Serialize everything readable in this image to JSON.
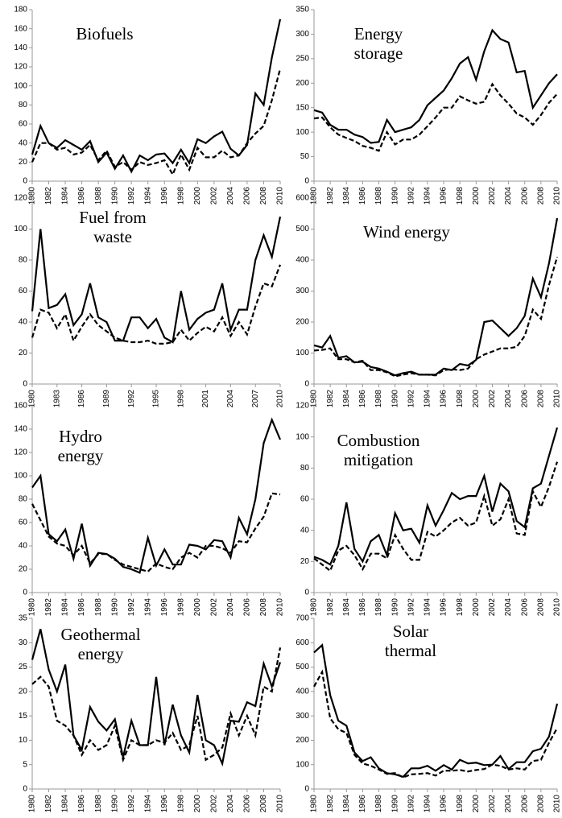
{
  "chart_data": [
    {
      "type": "line",
      "title": "Biofuels",
      "x": [
        1980,
        1981,
        1982,
        1983,
        1984,
        1985,
        1986,
        1987,
        1988,
        1989,
        1990,
        1991,
        1992,
        1993,
        1994,
        1995,
        1996,
        1997,
        1998,
        1999,
        2000,
        2001,
        2002,
        2003,
        2004,
        2005,
        2006,
        2007,
        2008,
        2009,
        2010
      ],
      "xlim": [
        1980,
        2010
      ],
      "xticks": [
        1980,
        1982,
        1984,
        1986,
        1988,
        1990,
        1992,
        1994,
        1996,
        1998,
        2000,
        2002,
        2004,
        2006,
        2008,
        2010
      ],
      "ylim": [
        0,
        180
      ],
      "yticks": [
        0,
        20,
        40,
        60,
        80,
        100,
        120,
        140,
        160,
        180
      ],
      "series": [
        {
          "color": "#000000",
          "line_style": "solid",
          "values": [
            28,
            58,
            40,
            35,
            43,
            38,
            33,
            42,
            20,
            30,
            13,
            27,
            10,
            27,
            22,
            28,
            29,
            19,
            33,
            19,
            44,
            40,
            47,
            52,
            34,
            27,
            38,
            92,
            80,
            130,
            170
          ]
        },
        {
          "color": "#000000",
          "line_style": "dashed",
          "values": [
            20,
            40,
            40,
            33,
            35,
            28,
            30,
            38,
            22,
            32,
            15,
            20,
            12,
            20,
            17,
            19,
            22,
            7,
            28,
            12,
            35,
            25,
            25,
            32,
            25,
            27,
            40,
            50,
            58,
            85,
            118
          ]
        }
      ]
    },
    {
      "type": "line",
      "title": "Energy storage",
      "x": [
        1980,
        1981,
        1982,
        1983,
        1984,
        1985,
        1986,
        1987,
        1988,
        1989,
        1990,
        1991,
        1992,
        1993,
        1994,
        1995,
        1996,
        1997,
        1998,
        1999,
        2000,
        2001,
        2002,
        2003,
        2004,
        2005,
        2006,
        2007,
        2008,
        2009,
        2010
      ],
      "xlim": [
        1980,
        2010
      ],
      "xticks": [
        1980,
        1982,
        1984,
        1986,
        1988,
        1990,
        1992,
        1994,
        1996,
        1998,
        2000,
        2002,
        2004,
        2006,
        2008,
        2010
      ],
      "ylim": [
        0,
        350
      ],
      "yticks": [
        0,
        50,
        100,
        150,
        200,
        250,
        300,
        350
      ],
      "series": [
        {
          "color": "#000000",
          "line_style": "solid",
          "values": [
            145,
            140,
            115,
            105,
            105,
            95,
            90,
            78,
            80,
            125,
            100,
            105,
            110,
            125,
            155,
            170,
            185,
            210,
            240,
            253,
            207,
            265,
            308,
            290,
            283,
            222,
            225,
            150,
            175,
            200,
            218
          ]
        },
        {
          "color": "#000000",
          "line_style": "dashed",
          "values": [
            128,
            130,
            110,
            95,
            88,
            82,
            72,
            68,
            62,
            100,
            75,
            85,
            85,
            95,
            112,
            130,
            150,
            150,
            173,
            165,
            158,
            162,
            198,
            175,
            158,
            138,
            130,
            115,
            135,
            160,
            178
          ]
        }
      ]
    },
    {
      "type": "line",
      "title": "Fuel from waste",
      "x": [
        1980,
        1981,
        1982,
        1983,
        1984,
        1985,
        1986,
        1987,
        1988,
        1989,
        1990,
        1991,
        1992,
        1993,
        1994,
        1995,
        1996,
        1997,
        1998,
        1999,
        2000,
        2001,
        2002,
        2003,
        2004,
        2005,
        2006,
        2007,
        2008,
        2009,
        2010
      ],
      "xlim": [
        1980,
        2010
      ],
      "xticks": [
        1980,
        1983,
        1986,
        1989,
        1992,
        1995,
        1998,
        2001,
        2004,
        2007,
        2010
      ],
      "ylim": [
        0,
        120
      ],
      "yticks": [
        0,
        20,
        40,
        60,
        80,
        100,
        120
      ],
      "series": [
        {
          "color": "#000000",
          "line_style": "solid",
          "values": [
            47,
            100,
            49,
            51,
            58,
            38,
            45,
            65,
            43,
            40,
            28,
            28,
            43,
            43,
            36,
            42,
            30,
            27,
            60,
            35,
            42,
            46,
            48,
            65,
            35,
            48,
            48,
            80,
            96,
            82,
            108
          ]
        },
        {
          "color": "#000000",
          "line_style": "dashed",
          "values": [
            30,
            48,
            46,
            36,
            45,
            28,
            37,
            45,
            38,
            34,
            30,
            28,
            27,
            27,
            28,
            26,
            26,
            27,
            35,
            28,
            33,
            37,
            34,
            43,
            31,
            40,
            32,
            50,
            65,
            63,
            77
          ]
        }
      ]
    },
    {
      "type": "line",
      "title": "Wind energy",
      "x": [
        1980,
        1981,
        1982,
        1983,
        1984,
        1985,
        1986,
        1987,
        1988,
        1989,
        1990,
        1991,
        1992,
        1993,
        1994,
        1995,
        1996,
        1997,
        1998,
        1999,
        2000,
        2001,
        2002,
        2003,
        2004,
        2005,
        2006,
        2007,
        2008,
        2009,
        2010
      ],
      "xlim": [
        1980,
        2010
      ],
      "xticks": [
        1980,
        1982,
        1984,
        1986,
        1988,
        1990,
        1992,
        1994,
        1996,
        1998,
        2000,
        2002,
        2004,
        2006,
        2008,
        2010
      ],
      "ylim": [
        0,
        600
      ],
      "yticks": [
        0,
        100,
        200,
        300,
        400,
        500,
        600
      ],
      "series": [
        {
          "color": "#000000",
          "line_style": "solid",
          "values": [
            125,
            118,
            155,
            85,
            90,
            70,
            72,
            55,
            50,
            40,
            28,
            35,
            40,
            30,
            30,
            30,
            50,
            45,
            65,
            60,
            78,
            200,
            205,
            180,
            155,
            180,
            220,
            340,
            280,
            390,
            535
          ]
        },
        {
          "color": "#000000",
          "line_style": "dashed",
          "values": [
            108,
            110,
            115,
            80,
            80,
            70,
            75,
            45,
            45,
            38,
            25,
            30,
            35,
            30,
            30,
            28,
            45,
            48,
            45,
            50,
            80,
            95,
            105,
            115,
            115,
            120,
            155,
            240,
            210,
            320,
            410
          ]
        }
      ]
    },
    {
      "type": "line",
      "title": "Hydro energy",
      "x": [
        1980,
        1981,
        1982,
        1983,
        1984,
        1985,
        1986,
        1987,
        1988,
        1989,
        1990,
        1991,
        1992,
        1993,
        1994,
        1995,
        1996,
        1997,
        1998,
        1999,
        2000,
        2001,
        2002,
        2003,
        2004,
        2005,
        2006,
        2007,
        2008,
        2009,
        2010
      ],
      "xlim": [
        1980,
        2010
      ],
      "xticks": [
        1980,
        1982,
        1984,
        1986,
        1988,
        1990,
        1992,
        1994,
        1996,
        1998,
        2000,
        2002,
        2004,
        2006,
        2008,
        2010
      ],
      "ylim": [
        0,
        160
      ],
      "yticks": [
        0,
        20,
        40,
        60,
        80,
        100,
        120,
        140,
        160
      ],
      "series": [
        {
          "color": "#000000",
          "line_style": "solid",
          "values": [
            90,
            100,
            50,
            44,
            54,
            29,
            59,
            23,
            34,
            33,
            29,
            22,
            20,
            17,
            47,
            23,
            37,
            24,
            24,
            41,
            40,
            37,
            45,
            44,
            30,
            64,
            50,
            80,
            128,
            148,
            131
          ]
        },
        {
          "color": "#000000",
          "line_style": "dashed",
          "values": [
            76,
            62,
            48,
            42,
            40,
            32,
            40,
            25,
            33,
            33,
            28,
            24,
            22,
            20,
            18,
            25,
            22,
            20,
            30,
            34,
            30,
            40,
            40,
            38,
            34,
            44,
            43,
            55,
            65,
            85,
            84
          ]
        }
      ]
    },
    {
      "type": "line",
      "title": "Combustion mitigation",
      "x": [
        1980,
        1981,
        1982,
        1983,
        1984,
        1985,
        1986,
        1987,
        1988,
        1989,
        1990,
        1991,
        1992,
        1993,
        1994,
        1995,
        1996,
        1997,
        1998,
        1999,
        2000,
        2001,
        2002,
        2003,
        2004,
        2005,
        2006,
        2007,
        2008,
        2009,
        2010
      ],
      "xlim": [
        1980,
        2010
      ],
      "xticks": [
        1980,
        1982,
        1984,
        1986,
        1988,
        1990,
        1992,
        1994,
        1996,
        1998,
        2000,
        2002,
        2004,
        2006,
        2008,
        2010
      ],
      "ylim": [
        0,
        120
      ],
      "yticks": [
        0,
        20,
        40,
        60,
        80,
        100,
        120
      ],
      "series": [
        {
          "color": "#000000",
          "line_style": "solid",
          "values": [
            23,
            21,
            18,
            30,
            58,
            28,
            20,
            33,
            37,
            24,
            51,
            40,
            41,
            32,
            56,
            43,
            53,
            64,
            60,
            62,
            62,
            75,
            52,
            70,
            65,
            46,
            42,
            67,
            70,
            88,
            106
          ]
        },
        {
          "color": "#000000",
          "line_style": "dashed",
          "values": [
            22,
            18,
            14,
            27,
            30,
            24,
            15,
            25,
            25,
            22,
            37,
            28,
            21,
            21,
            39,
            36,
            40,
            45,
            48,
            43,
            45,
            62,
            43,
            47,
            60,
            38,
            37,
            65,
            55,
            68,
            84
          ]
        }
      ]
    },
    {
      "type": "line",
      "title": "Geothermal energy",
      "x": [
        1980,
        1981,
        1982,
        1983,
        1984,
        1985,
        1986,
        1987,
        1988,
        1989,
        1990,
        1991,
        1992,
        1993,
        1994,
        1995,
        1996,
        1997,
        1998,
        1999,
        2000,
        2001,
        2002,
        2003,
        2004,
        2005,
        2006,
        2007,
        2008,
        2009,
        2010
      ],
      "xlim": [
        1980,
        2010
      ],
      "xticks": [
        1980,
        1982,
        1984,
        1986,
        1988,
        1990,
        1992,
        1994,
        1996,
        1998,
        2000,
        2002,
        2004,
        2006,
        2008,
        2010
      ],
      "ylim": [
        0,
        35
      ],
      "yticks": [
        0,
        5,
        10,
        15,
        20,
        25,
        30,
        35
      ],
      "series": [
        {
          "color": "#000000",
          "line_style": "solid",
          "values": [
            26.5,
            32.8,
            24.5,
            20,
            25.5,
            11,
            8,
            16.8,
            13.8,
            12,
            14.3,
            6.5,
            14,
            9,
            9,
            23,
            9,
            17.3,
            11,
            7.5,
            19.3,
            10,
            9,
            5.2,
            14,
            13.8,
            17.8,
            17,
            25.7,
            21,
            26
          ]
        },
        {
          "color": "#000000",
          "line_style": "dashed",
          "values": [
            21.5,
            23,
            21,
            14,
            13,
            11,
            7,
            10,
            8,
            9,
            13,
            6,
            10,
            9,
            9,
            10,
            9.5,
            11.5,
            8,
            9,
            15,
            6,
            7,
            8.5,
            15.5,
            11,
            15,
            11,
            21,
            20,
            29
          ]
        }
      ]
    },
    {
      "type": "line",
      "title": "Solar thermal",
      "x": [
        1980,
        1981,
        1982,
        1983,
        1984,
        1985,
        1986,
        1987,
        1988,
        1989,
        1990,
        1991,
        1992,
        1993,
        1994,
        1995,
        1996,
        1997,
        1998,
        1999,
        2000,
        2001,
        2002,
        2003,
        2004,
        2005,
        2006,
        2007,
        2008,
        2009,
        2010
      ],
      "xlim": [
        1980,
        2010
      ],
      "xticks": [
        1980,
        1982,
        1984,
        1986,
        1988,
        1990,
        1992,
        1994,
        1996,
        1998,
        2000,
        2002,
        2004,
        2006,
        2008,
        2010
      ],
      "ylim": [
        0,
        700
      ],
      "yticks": [
        0,
        100,
        200,
        300,
        400,
        500,
        600,
        700
      ],
      "series": [
        {
          "color": "#000000",
          "line_style": "solid",
          "values": [
            560,
            590,
            385,
            280,
            260,
            150,
            115,
            130,
            85,
            65,
            60,
            50,
            85,
            85,
            95,
            75,
            98,
            80,
            120,
            105,
            108,
            98,
            100,
            135,
            82,
            110,
            110,
            155,
            165,
            215,
            350
          ]
        },
        {
          "color": "#000000",
          "line_style": "dashed",
          "values": [
            420,
            480,
            290,
            245,
            230,
            140,
            105,
            95,
            80,
            62,
            65,
            48,
            60,
            62,
            65,
            55,
            75,
            75,
            78,
            72,
            78,
            82,
            100,
            95,
            80,
            85,
            80,
            115,
            120,
            190,
            250
          ]
        }
      ]
    }
  ]
}
